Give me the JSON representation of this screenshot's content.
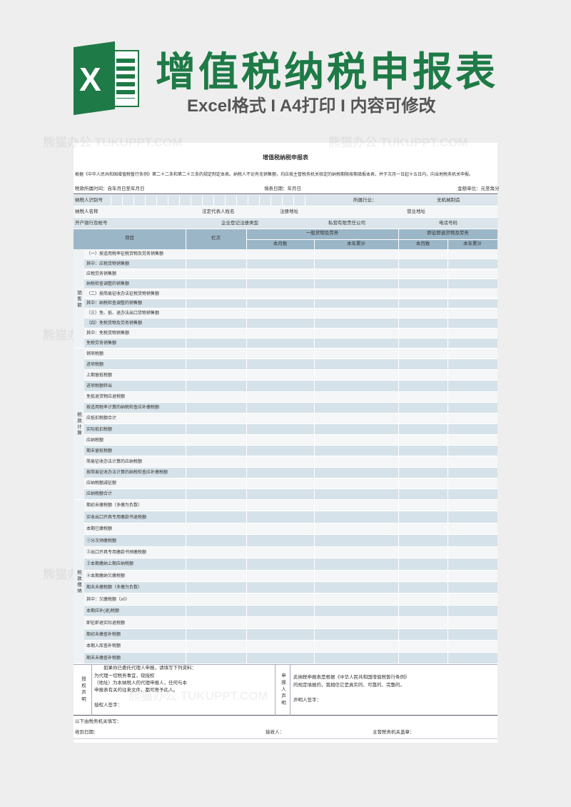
{
  "header": {
    "logo_letter": "X",
    "title": "增值税纳税申报表",
    "subtitle": "Excel格式 I A4打印 I 内容可修改",
    "watermark": "熊猫办公 TUKUPPT.COM"
  },
  "form": {
    "title": "增值税纳税申报表",
    "intro": "根据《中华人民共和国增值税暂行条例》第二十二条和第二十三条的规定制定本表。纳税人不论有无销售额，均应按主管税务机关核定的纳税期限按期填报本表，并于次月一日起十五日内，向当地税务机关申报。",
    "period": "税款所属时间：自年月日至年月日",
    "fill_date": "填表日期：年月日",
    "unit": "金额单位：元至角分",
    "info_rows": [
      [
        "纳税人识别号",
        "所属行业：",
        "无机械制造"
      ],
      [
        "纳税人名称",
        "法定代表人姓名",
        "注册地址",
        "营业地址"
      ],
      [
        "开户银行及帐号",
        "企业登记注册类型",
        "私营有限责任公司",
        "电话号码"
      ]
    ],
    "columns": {
      "item": "项目",
      "line": "栏次",
      "general": "一般货物及劳务",
      "refund": "即征即退货物及劳务",
      "month": "本月数",
      "year": "本年累计"
    },
    "groups": [
      {
        "label": "销售额",
        "rows": [
          "（一）按适用税率征税货物及劳务销售额",
          "其中：应税货物销售额",
          "应税劳务销售额",
          "纳税检查调整的销售额",
          "（二）按简易征收办法征税货物销售额",
          "其中：纳税检查调整的销售额",
          "（三）免、抵、退办法出口货物销售额",
          "（四）免税货物及劳务销售额",
          "其中：免税货物销售额",
          "免税劳务销售额"
        ]
      },
      {
        "label": "税款计算",
        "rows": [
          "销项税额",
          "进项税额",
          "上期留抵税额",
          "进项税额转出",
          "免抵退货物应退税额",
          "按适用税率计算的纳税检查应补缴税额",
          "应抵扣税额合计",
          "实际抵扣税额",
          "应纳税额",
          "期末留抵税额",
          "简易征收办法计算的应纳税额",
          "按简易征收办法计算的纳税检查应补缴税额",
          "应纳税额减征额",
          "应纳税额合计"
        ]
      },
      {
        "label": "税款缴纳",
        "rows": [
          "期初未缴税额（多缴为负数）",
          "实收出口开具专用缴款书退税额",
          "本期已缴税额",
          "①分次预缴税额",
          "②出口开具专用缴款书预缴税额",
          "③本期缴纳上期应纳税额",
          "④本期缴纳欠缴税额",
          "期末未缴税额（多缴为负数）",
          "其中：欠缴税额（≥0）",
          "本期应补(退)税额",
          "即征即退实际退税额",
          "期初未缴查补税额",
          "本期入库查补税额",
          "期末未缴查补税额"
        ]
      }
    ],
    "authorization": {
      "label": "授权声明",
      "lines": [
        "如果你已委托代理人申报，请填写下列资料：",
        "为代理一切税务事宜，现授权",
        "（地址）为本纳税人的代理申报人，任何与本",
        "申报表有关的往来文件，都可寄予此人。",
        "授权人签字："
      ]
    },
    "declaration": {
      "label": "申报人声明",
      "lines": [
        "此纳税申报表是根据《中华人民共和国增值税暂行条例》",
        "的规定填报的，我相信它是真实的、可靠的、完整的。",
        "声明人签字："
      ]
    },
    "footer": {
      "note": "以下由税务机关填写：",
      "received": "收到日期：",
      "receiver": "接收人：",
      "seal": "主管税务机关盖章："
    }
  }
}
